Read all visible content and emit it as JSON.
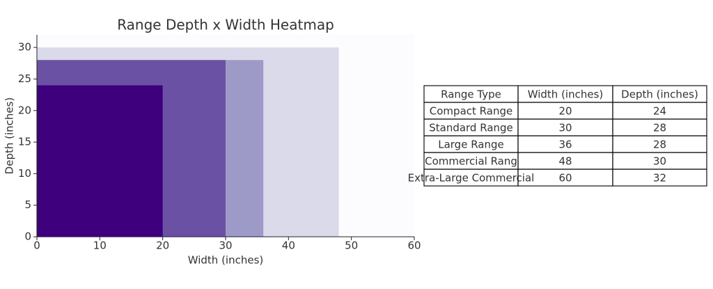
{
  "chart_data": {
    "type": "nested-rect",
    "title": "Range Depth x Width Heatmap",
    "x_label": "Width (inches)",
    "y_label": "Depth (inches)",
    "widths": [
      60,
      48,
      36,
      30,
      20
    ],
    "depths": [
      32,
      30,
      28,
      28,
      24
    ],
    "colors": [
      "#fcfbfd",
      "#dadaeb",
      "#9e9ac8",
      "#6a51a3",
      "#3f007d"
    ],
    "xlim": [
      0,
      60
    ],
    "ylim": [
      0,
      32
    ],
    "xticks": [
      0,
      10,
      20,
      30,
      40,
      50,
      60
    ],
    "yticks": [
      0,
      5,
      10,
      15,
      20,
      25,
      30
    ]
  },
  "table": {
    "header": [
      "Range Type",
      "Width (inches)",
      "Depth (inches)"
    ],
    "rows": [
      [
        "Compact Range",
        "20",
        "24"
      ],
      [
        "Standard Range",
        "30",
        "28"
      ],
      [
        "Large Range",
        "36",
        "28"
      ],
      [
        "Commercial Rang",
        "48",
        "30"
      ],
      [
        "Extra-Large Commercial",
        "60",
        "32"
      ]
    ]
  }
}
